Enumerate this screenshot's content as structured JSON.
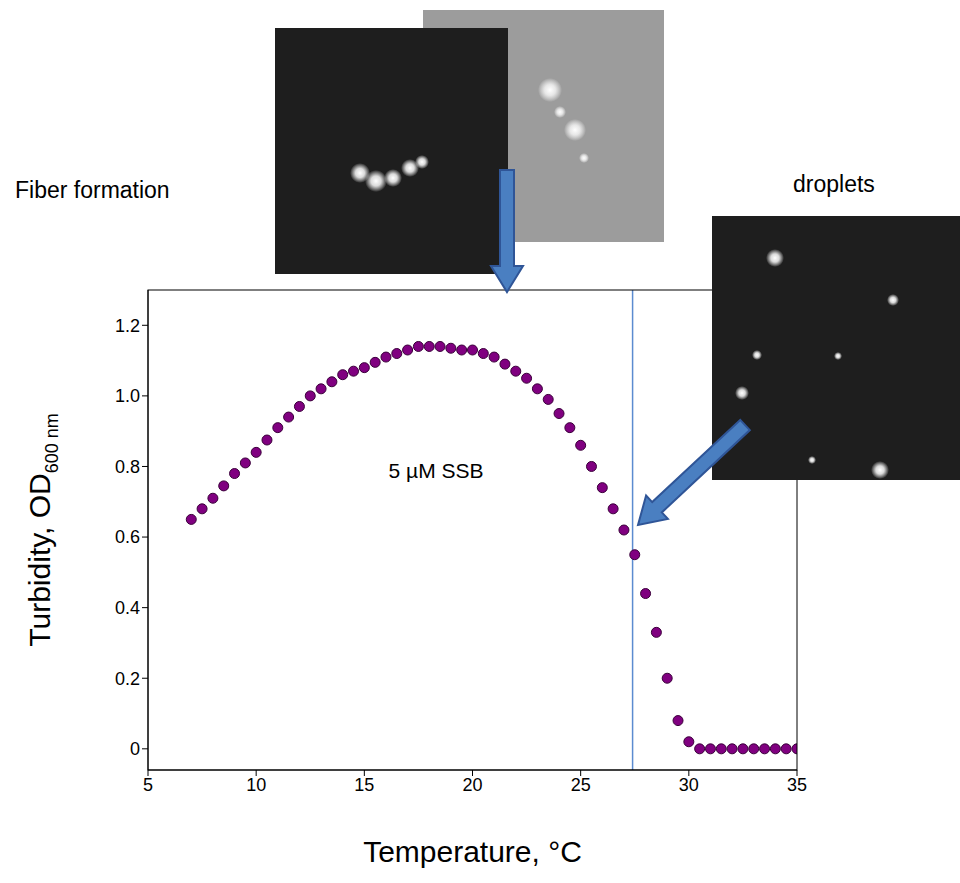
{
  "chart_data": {
    "type": "scatter",
    "xlabel": "Temperature, °C",
    "ylabel": "Turbidity, OD",
    "ylabel_subscript": "600 nm",
    "x": [
      7,
      7.5,
      8,
      8.5,
      9,
      9.5,
      10,
      10.5,
      11,
      11.5,
      12,
      12.5,
      13,
      13.5,
      14,
      14.5,
      15,
      15.5,
      16,
      16.5,
      17,
      17.5,
      18,
      18.5,
      19,
      19.5,
      20,
      20.5,
      21,
      21.5,
      22,
      22.5,
      23,
      23.5,
      24,
      24.5,
      25,
      25.5,
      26,
      26.5,
      27,
      27.5,
      28,
      28.5,
      29,
      29.5,
      30,
      30.5,
      31,
      31.5,
      32,
      32.5,
      33,
      33.5,
      34,
      34.5,
      35
    ],
    "values": [
      0.65,
      0.68,
      0.71,
      0.745,
      0.78,
      0.81,
      0.84,
      0.875,
      0.91,
      0.94,
      0.97,
      1.0,
      1.02,
      1.04,
      1.06,
      1.07,
      1.08,
      1.095,
      1.11,
      1.12,
      1.13,
      1.14,
      1.14,
      1.14,
      1.135,
      1.13,
      1.13,
      1.12,
      1.11,
      1.09,
      1.07,
      1.05,
      1.02,
      0.99,
      0.95,
      0.91,
      0.86,
      0.8,
      0.74,
      0.68,
      0.62,
      0.55,
      0.44,
      0.33,
      0.2,
      0.08,
      0.02,
      0,
      0,
      0,
      0,
      0,
      0,
      0,
      0,
      0,
      0
    ],
    "color": "#800080",
    "marker": "circle",
    "xlim": [
      5,
      35
    ],
    "ylim": [
      -0.06,
      1.3
    ],
    "xticks": [
      5,
      10,
      15,
      20,
      25,
      30,
      35
    ],
    "yticks": [
      0,
      0.2,
      0.4,
      0.6,
      0.8,
      {
        "value": 1,
        "label": "1.0"
      },
      1.2
    ],
    "vline": 27.4,
    "annotations": {
      "center_label": "5 µM SSB",
      "fiber_label": "Fiber formation",
      "droplet_label": "droplets"
    }
  }
}
